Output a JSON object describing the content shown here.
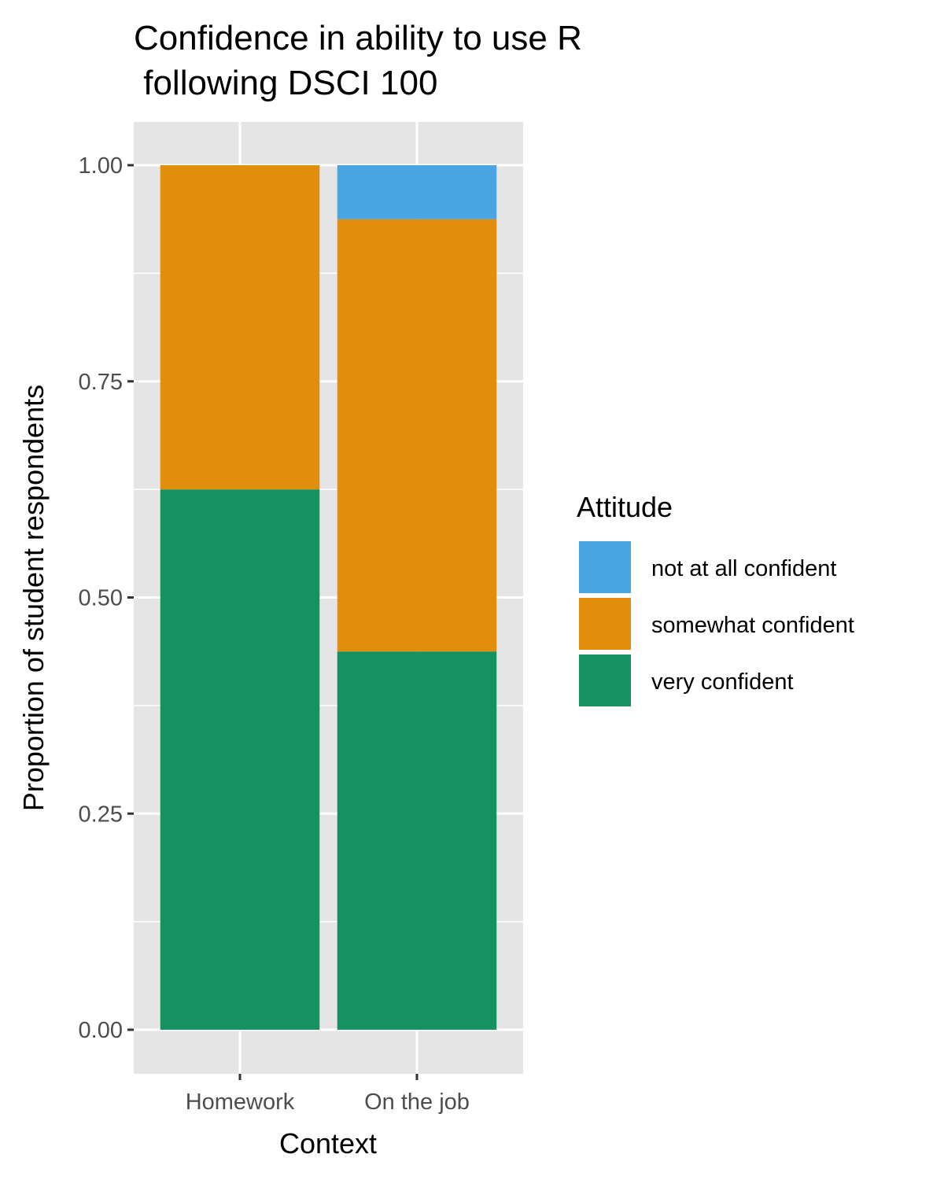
{
  "chart_data": {
    "type": "bar",
    "stacked": true,
    "title_lines": [
      "Confidence in ability to use R",
      " following DSCI 100"
    ],
    "xlabel": "Context",
    "ylabel": "Proportion of student respondents",
    "categories": [
      "Homework",
      "On the job"
    ],
    "ylim": [
      -0.05,
      1.05
    ],
    "yticks": [
      0,
      0.25,
      0.5,
      0.75,
      1.0
    ],
    "ytick_labels": [
      "0.00",
      "0.25",
      "0.50",
      "0.75",
      "1.00"
    ],
    "grid": true,
    "legend": {
      "title": "Attitude",
      "placement": "right",
      "entries": [
        "not at all confident",
        "somewhat confident",
        "very confident"
      ]
    },
    "series": [
      {
        "name": "very confident",
        "color": "#169160",
        "values": [
          0.625,
          0.4375
        ]
      },
      {
        "name": "somewhat confident",
        "color": "#E08E0B",
        "values": [
          0.375,
          0.5
        ]
      },
      {
        "name": "not at all confident",
        "color": "#4AA5E3",
        "values": [
          0,
          0.0625
        ]
      }
    ]
  }
}
